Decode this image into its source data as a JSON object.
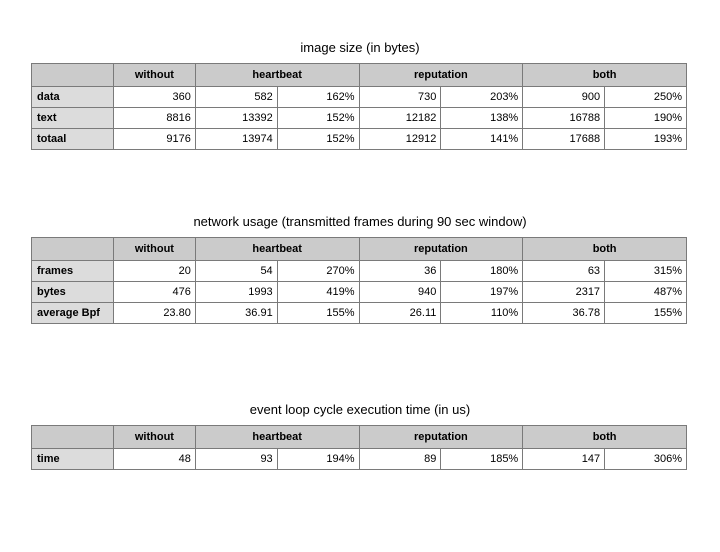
{
  "tables": [
    {
      "title": "image size (in bytes)",
      "headers": [
        "",
        "without",
        "heartbeat",
        "reputation",
        "both"
      ],
      "rows": [
        {
          "label": "data",
          "cells": [
            "360",
            "582",
            "162%",
            "730",
            "203%",
            "900",
            "250%"
          ]
        },
        {
          "label": "text",
          "cells": [
            "8816",
            "13392",
            "152%",
            "12182",
            "138%",
            "16788",
            "190%"
          ]
        },
        {
          "label": "totaal",
          "cells": [
            "9176",
            "13974",
            "152%",
            "12912",
            "141%",
            "17688",
            "193%"
          ]
        }
      ]
    },
    {
      "title": "network usage (transmitted frames during 90 sec window)",
      "headers": [
        "",
        "without",
        "heartbeat",
        "reputation",
        "both"
      ],
      "rows": [
        {
          "label": "frames",
          "cells": [
            "20",
            "54",
            "270%",
            "36",
            "180%",
            "63",
            "315%"
          ]
        },
        {
          "label": "bytes",
          "cells": [
            "476",
            "1993",
            "419%",
            "940",
            "197%",
            "2317",
            "487%"
          ]
        },
        {
          "label": "average Bpf",
          "cells": [
            "23.80",
            "36.91",
            "155%",
            "26.11",
            "110%",
            "36.78",
            "155%"
          ]
        }
      ]
    },
    {
      "title": "event loop cycle execution time (in us)",
      "headers": [
        "",
        "without",
        "heartbeat",
        "reputation",
        "both"
      ],
      "rows": [
        {
          "label": "time",
          "cells": [
            "48",
            "93",
            "194%",
            "89",
            "185%",
            "147",
            "306%"
          ]
        }
      ]
    }
  ]
}
